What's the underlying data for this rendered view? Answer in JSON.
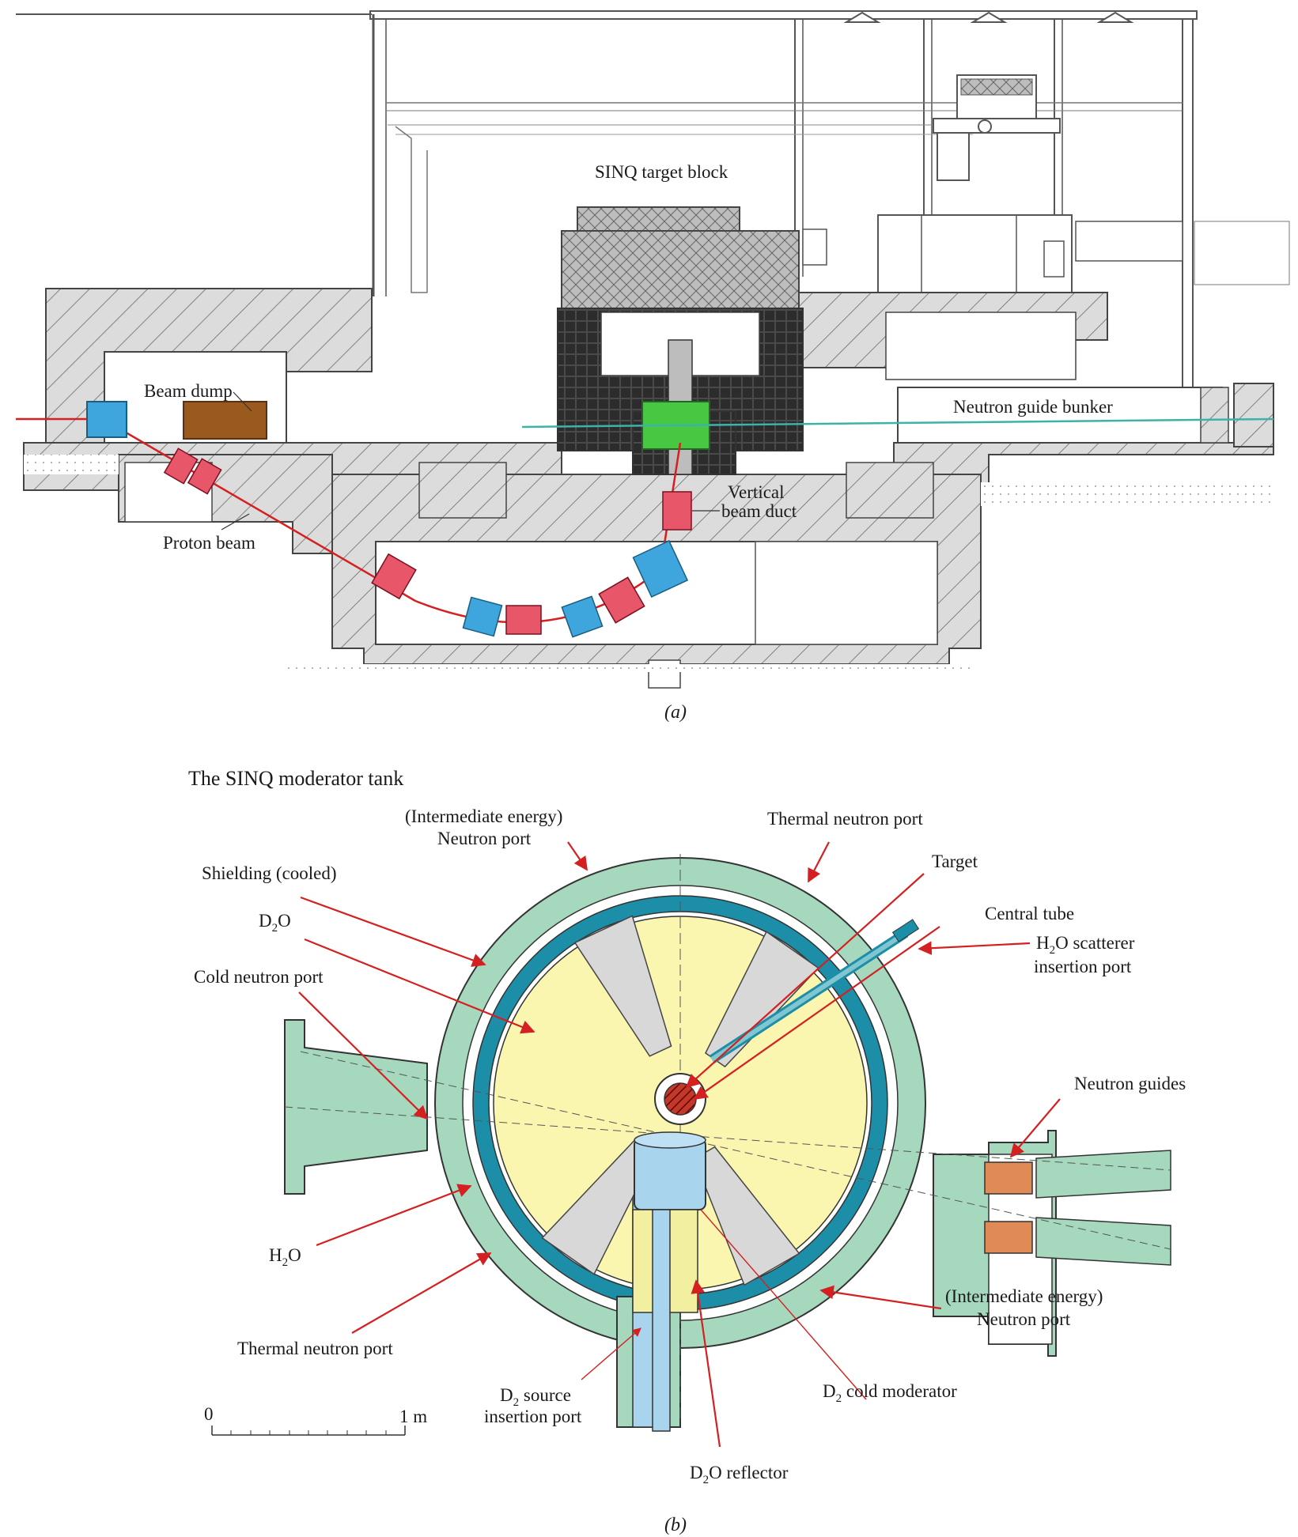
{
  "panel_a": {
    "labels": {
      "target_block": "SINQ target block",
      "beam_dump": "Beam dump",
      "neutron_guide_bunker": "Neutron guide bunker",
      "vertical_beam_duct_1": "Vertical",
      "vertical_beam_duct_2": "beam duct",
      "proton_beam": "Proton beam"
    },
    "caption": "(a)"
  },
  "panel_b": {
    "title": "The SINQ moderator tank",
    "labels": {
      "intermediate_port_top_1": "(Intermediate energy)",
      "intermediate_port_top_2": "Neutron port",
      "thermal_port_top": "Thermal neutron port",
      "target": "Target",
      "central_tube": "Central tube",
      "shielding": "Shielding (cooled)",
      "d2o_main": "D",
      "d2o_sub": "2",
      "d2o_end": "O",
      "h2o_scatterer_main": "H",
      "h2o_scatterer_sub": "2",
      "h2o_scatterer_end": "O scatterer",
      "h2o_scatterer_2": "insertion port",
      "cold_port": "Cold neutron port",
      "neutron_guides": "Neutron guides",
      "h2o_main": "H",
      "h2o_sub": "2",
      "h2o_end": "O",
      "intermediate_port_bottom_1": "(Intermediate energy)",
      "intermediate_port_bottom_2": "Neutron port",
      "thermal_port_bottom": "Thermal neutron port",
      "d2_source_main": "D",
      "d2_source_sub": "2",
      "d2_source_end": " source",
      "d2_source_2": "insertion port",
      "d2_cold_main": "D",
      "d2_cold_sub": "2",
      "d2_cold_end": " cold moderator",
      "d2o_reflector_main": "D",
      "d2o_reflector_sub": "2",
      "d2o_reflector_end": "O reflector"
    },
    "scale": {
      "zero": "0",
      "one": "1 m"
    },
    "caption": "(b)"
  },
  "colors": {
    "beam": "#d42020",
    "cyan_guide": "#3bb3a8",
    "magnet_red": "#e8566a",
    "magnet_blue": "#3ea6dd",
    "beam_dump": "#9a5a1e",
    "target_green": "#48c842",
    "yellow": "#faf6b0",
    "shield_green": "#a6d8bd",
    "teal": "#1d8ea8",
    "cold_blue": "#a8d4ee",
    "guide_orange": "#e08a55",
    "hatch": "#555555"
  }
}
